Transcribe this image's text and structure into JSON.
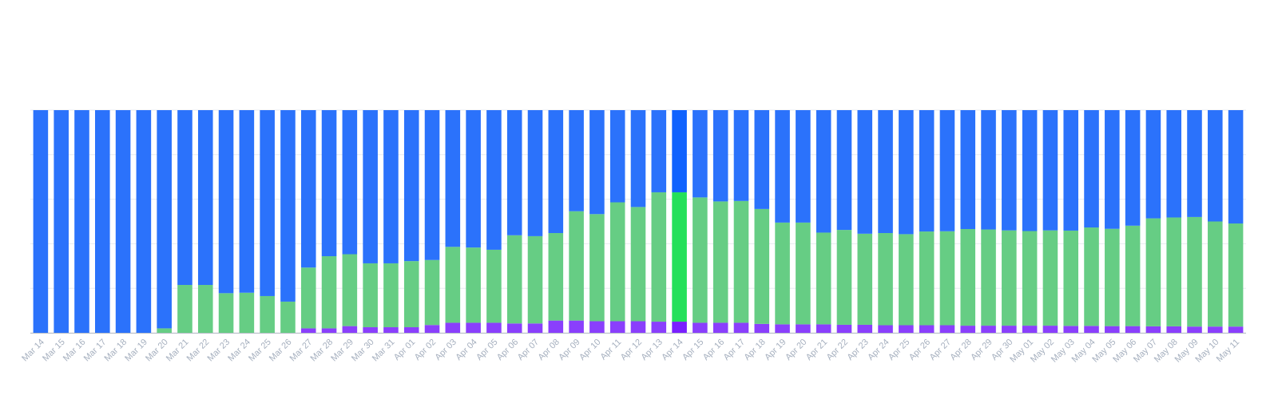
{
  "chart_data": {
    "type": "bar",
    "stacked": true,
    "normalized": true,
    "ylim": [
      0,
      100
    ],
    "grid": true,
    "legend": "none",
    "highlight_index": 31,
    "categories": [
      "Mar 14",
      "Mar 15",
      "Mar 16",
      "Mar 17",
      "Mar 18",
      "Mar 19",
      "Mar 20",
      "Mar 21",
      "Mar 22",
      "Mar 23",
      "Mar 24",
      "Mar 25",
      "Mar 26",
      "Mar 27",
      "Mar 28",
      "Mar 29",
      "Mar 30",
      "Mar 31",
      "Apr 01",
      "Apr 02",
      "Apr 03",
      "Apr 04",
      "Apr 05",
      "Apr 06",
      "Apr 07",
      "Apr 08",
      "Apr 09",
      "Apr 10",
      "Apr 11",
      "Apr 12",
      "Apr 13",
      "Apr 14",
      "Apr 15",
      "Apr 16",
      "Apr 17",
      "Apr 18",
      "Apr 19",
      "Apr 20",
      "Apr 21",
      "Apr 22",
      "Apr 23",
      "Apr 24",
      "Apr 25",
      "Apr 26",
      "Apr 27",
      "Apr 28",
      "Apr 29",
      "Apr 30",
      "May 01",
      "May 02",
      "May 03",
      "May 04",
      "May 05",
      "May 06",
      "May 07",
      "May 08",
      "May 09",
      "May 10",
      "May 11"
    ],
    "series": [
      {
        "color": "#8a3ffc",
        "highlight_color": "#7a1fff",
        "values": [
          0,
          0,
          0,
          0,
          0,
          0,
          0,
          0,
          0,
          0,
          0,
          0,
          0,
          2,
          2,
          3,
          2.5,
          2.5,
          2.5,
          3.5,
          4.5,
          4.5,
          4.5,
          4.2,
          4.2,
          5.5,
          5.5,
          5.2,
          5.2,
          5.2,
          5,
          5,
          4.5,
          4.5,
          4.5,
          4,
          3.8,
          3.8,
          3.8,
          3.6,
          3.6,
          3.4,
          3.4,
          3.4,
          3.4,
          3.2,
          3.2,
          3.2,
          3.2,
          3.2,
          3.1,
          3.1,
          3,
          3,
          2.9,
          2.9,
          2.8,
          2.8,
          2.8
        ]
      },
      {
        "color": "#66cd84",
        "highlight_color": "#24e05a",
        "values": [
          0,
          0,
          0,
          0,
          0,
          0,
          2,
          21.5,
          21.5,
          17.8,
          18,
          16.5,
          14,
          27.3,
          32.4,
          32.3,
          28.7,
          28.7,
          29.7,
          29.2,
          34.1,
          33.8,
          32.8,
          39.6,
          39.2,
          39.3,
          49.1,
          48.1,
          53.4,
          51.3,
          58.1,
          58.1,
          56.3,
          54.5,
          54.7,
          51.6,
          45.7,
          45.7,
          41.2,
          42.6,
          40.9,
          41.4,
          40.9,
          42.1,
          42.2,
          43.4,
          43.2,
          42.8,
          42.5,
          42.8,
          42.8,
          44.2,
          43.7,
          45.1,
          48.5,
          48.9,
          49.2,
          47.2,
          46.3
        ]
      },
      {
        "color": "#2b72fb",
        "highlight_color": "#0f62fe",
        "values": [
          100,
          100,
          100,
          100,
          100,
          100,
          98,
          78.5,
          78.5,
          82.2,
          82,
          83.5,
          86,
          70.7,
          65.6,
          64.7,
          68.8,
          68.8,
          67.8,
          67.3,
          61.4,
          61.7,
          62.7,
          56.2,
          56.6,
          55.2,
          45.4,
          46.7,
          41.4,
          43.5,
          36.9,
          36.9,
          39.2,
          41,
          40.8,
          44.4,
          50.5,
          50.5,
          55,
          53.8,
          55.5,
          55.2,
          55.7,
          54.5,
          54.4,
          53.4,
          53.6,
          54,
          54.3,
          54,
          54.1,
          52.7,
          53.3,
          51.9,
          48.6,
          48.2,
          48,
          50,
          50.9
        ]
      }
    ]
  }
}
